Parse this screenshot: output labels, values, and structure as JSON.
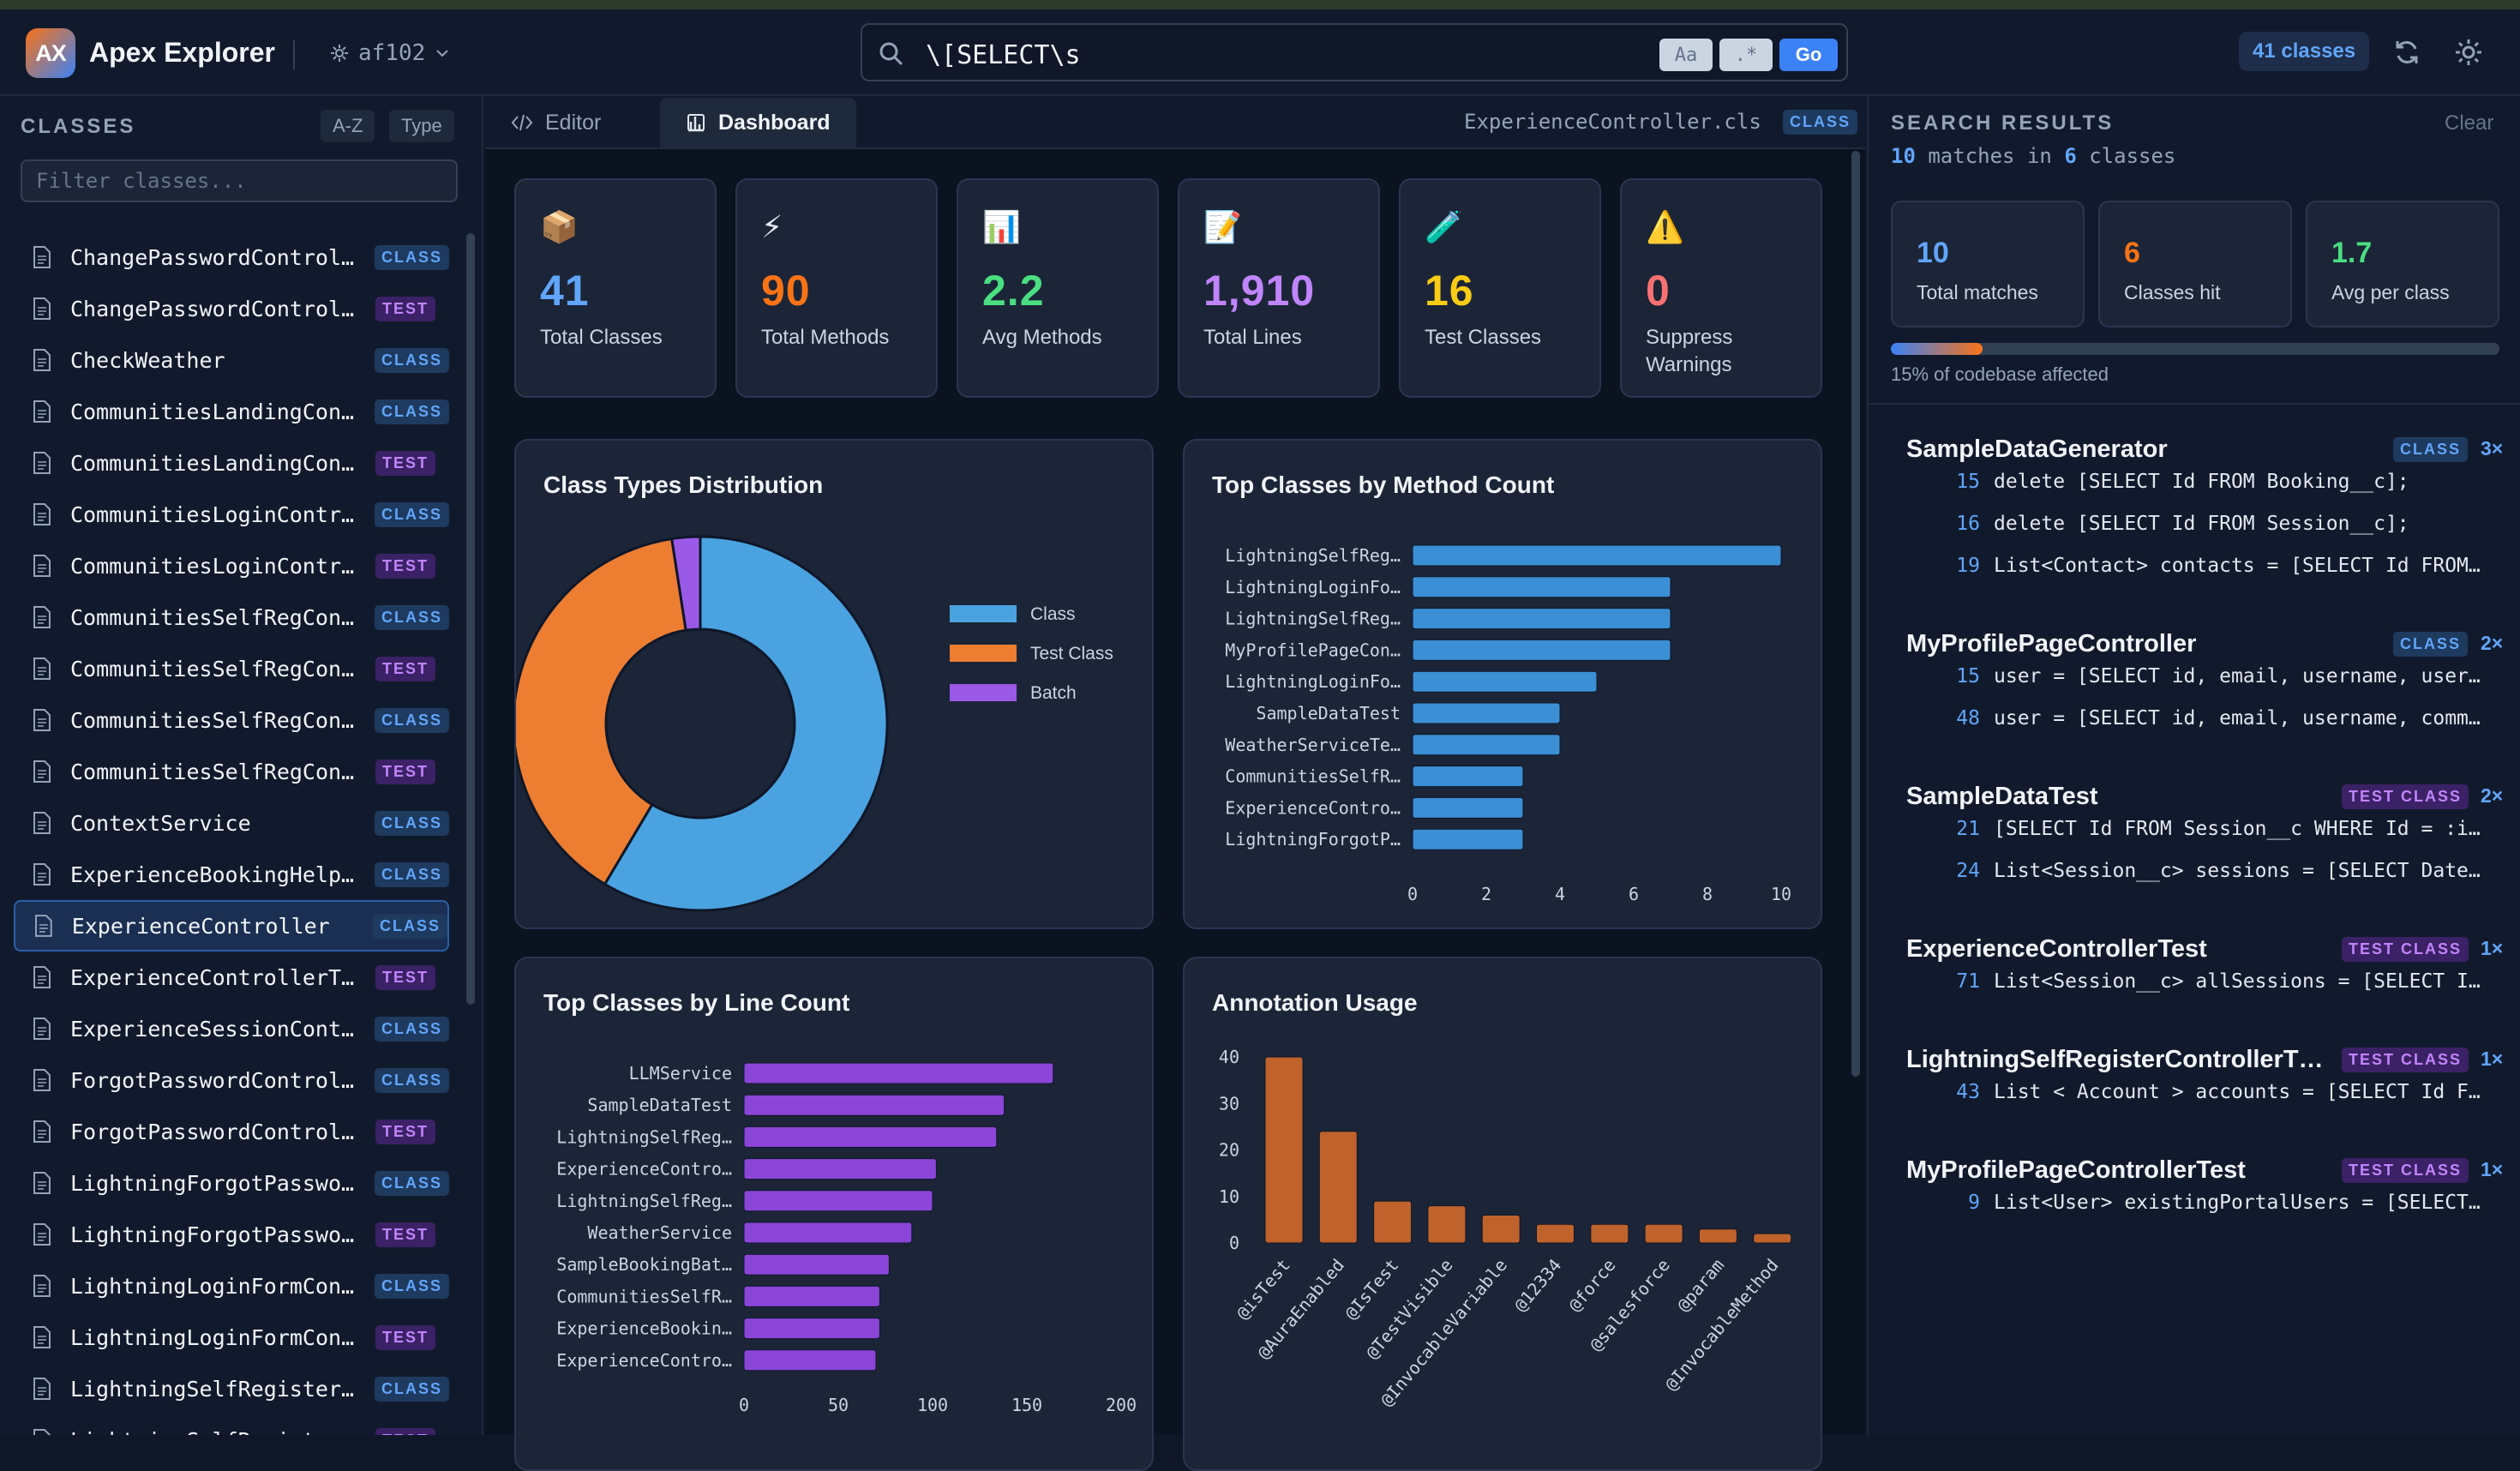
{
  "header": {
    "logo_text": "AX",
    "app_title": "Apex Explorer",
    "branch": "af102",
    "search_value": "\\[SELECT\\s",
    "case_btn": "Aa",
    "regex_btn": ".*",
    "go_btn": "Go",
    "class_count_badge": "41 classes"
  },
  "sidebar": {
    "title": "CLASSES",
    "sort_az": "A-Z",
    "sort_type": "Type",
    "filter_placeholder": "Filter classes...",
    "items": [
      {
        "name": "ChangePasswordControll…",
        "tag": "CLASS"
      },
      {
        "name": "ChangePasswordControlle…",
        "tag": "TEST"
      },
      {
        "name": "CheckWeather",
        "tag": "CLASS"
      },
      {
        "name": "CommunitiesLandingCont…",
        "tag": "CLASS"
      },
      {
        "name": "CommunitiesLandingContr…",
        "tag": "TEST"
      },
      {
        "name": "CommunitiesLoginContro…",
        "tag": "CLASS"
      },
      {
        "name": "CommunitiesLoginControl…",
        "tag": "TEST"
      },
      {
        "name": "CommunitiesSelfRegConf…",
        "tag": "CLASS"
      },
      {
        "name": "CommunitiesSelfRegConfi…",
        "tag": "TEST"
      },
      {
        "name": "CommunitiesSelfRegCont…",
        "tag": "CLASS"
      },
      {
        "name": "CommunitiesSelfRegContr…",
        "tag": "TEST"
      },
      {
        "name": "ContextService",
        "tag": "CLASS"
      },
      {
        "name": "ExperienceBookingHelper",
        "tag": "CLASS"
      },
      {
        "name": "ExperienceController",
        "tag": "CLASS",
        "active": true
      },
      {
        "name": "ExperienceControllerTest",
        "tag": "TEST"
      },
      {
        "name": "ExperienceSessionContr…",
        "tag": "CLASS"
      },
      {
        "name": "ForgotPasswordControll…",
        "tag": "CLASS"
      },
      {
        "name": "ForgotPasswordControlle…",
        "tag": "TEST"
      },
      {
        "name": "LightningForgotPasswor…",
        "tag": "CLASS"
      },
      {
        "name": "LightningForgotPassword…",
        "tag": "TEST"
      },
      {
        "name": "LightningLoginFormCont…",
        "tag": "CLASS"
      },
      {
        "name": "LightningLoginFormContr…",
        "tag": "TEST"
      },
      {
        "name": "LightningSelfRegisterC…",
        "tag": "CLASS"
      },
      {
        "name": "LightningSelfRegisterC…",
        "tag": "TEST"
      }
    ]
  },
  "main": {
    "tab_editor": "Editor",
    "tab_dashboard": "Dashboard",
    "file_label": "ExperienceController.cls",
    "file_tag": "CLASS",
    "stats": [
      {
        "icon": "📦",
        "value": "41",
        "label": "Total Classes",
        "color": "#60a5fa"
      },
      {
        "icon": "⚡",
        "value": "90",
        "label": "Total Methods",
        "color": "#f97316"
      },
      {
        "icon": "📊",
        "value": "2.2",
        "label": "Avg Methods",
        "color": "#4ade80"
      },
      {
        "icon": "📝",
        "value": "1,910",
        "label": "Total Lines",
        "color": "#c084fc"
      },
      {
        "icon": "🧪",
        "value": "16",
        "label": "Test Classes",
        "color": "#facc15"
      },
      {
        "icon": "⚠️",
        "value": "0",
        "label": "Suppress Warnings",
        "color": "#f87171"
      }
    ]
  },
  "chart_data": [
    {
      "type": "pie",
      "title": "Class Types Distribution",
      "categories": [
        "Class",
        "Test Class",
        "Batch"
      ],
      "values": [
        24,
        16,
        1
      ],
      "colors": [
        "#4aa3e0",
        "#ed7d31",
        "#9b59e8"
      ],
      "legend": "right"
    },
    {
      "type": "bar",
      "orientation": "horizontal",
      "title": "Top Classes by Method Count",
      "categories": [
        "LightningSelfReg…",
        "LightningLoginFo…",
        "LightningSelfReg…",
        "MyProfilePageCon…",
        "LightningLoginFo…",
        "SampleDataTest",
        "WeatherServiceTe…",
        "CommunitiesSelfR…",
        "ExperienceContro…",
        "LightningForgotP…"
      ],
      "values": [
        10,
        7,
        7,
        7,
        5,
        4,
        4,
        3,
        3,
        3
      ],
      "xticks": [
        0,
        2,
        4,
        6,
        8,
        10
      ],
      "xlim": [
        0,
        10
      ],
      "color": "#3b8fd4"
    },
    {
      "type": "bar",
      "orientation": "horizontal",
      "title": "Top Classes by Line Count",
      "categories": [
        "LLMService",
        "SampleDataTest",
        "LightningSelfReg…",
        "ExperienceContro…",
        "LightningSelfReg…",
        "WeatherService",
        "SampleBookingBat…",
        "CommunitiesSelfR…",
        "ExperienceBookin…",
        "ExperienceContro…"
      ],
      "values": [
        164,
        138,
        134,
        102,
        100,
        89,
        77,
        72,
        72,
        70
      ],
      "xticks": [
        0,
        50,
        100,
        150,
        200
      ],
      "xlim": [
        0,
        200
      ],
      "color": "#8b45d9"
    },
    {
      "type": "bar",
      "title": "Annotation Usage",
      "categories": [
        "@isTest",
        "@AuraEnabled",
        "@IsTest",
        "@TestVisible",
        "@InvocableVariable",
        "@12334",
        "@force",
        "@salesforce",
        "@param",
        "@InvocableMethod"
      ],
      "values": [
        40,
        24,
        9,
        8,
        6,
        4,
        4,
        4,
        3,
        2
      ],
      "yticks": [
        0,
        10,
        20,
        30,
        40
      ],
      "ylim": [
        0,
        42
      ],
      "color": "#c0622b"
    }
  ],
  "results": {
    "title": "SEARCH RESULTS",
    "clear": "Clear",
    "matches": "10",
    "matches_in": "matches in",
    "classes_n": "6",
    "classes_word": "classes",
    "mini": [
      {
        "value": "10",
        "label": "Total matches",
        "color": "#60a5fa"
      },
      {
        "value": "6",
        "label": "Classes hit",
        "color": "#f97316"
      },
      {
        "value": "1.7",
        "label": "Avg per class",
        "color": "#4ade80"
      }
    ],
    "affected_fraction": 0.15,
    "affected_label": "15% of codebase affected",
    "groups": [
      {
        "name": "SampleDataGenerator",
        "tag": "CLASS",
        "count": "3×",
        "lines": [
          {
            "n": "15",
            "code": "delete [SELECT Id FROM Booking__c];"
          },
          {
            "n": "16",
            "code": "delete [SELECT Id FROM Session__c];"
          },
          {
            "n": "19",
            "code": "List<Contact> contacts = [SELECT Id FROM …"
          }
        ]
      },
      {
        "name": "MyProfilePageController",
        "tag": "CLASS",
        "count": "2×",
        "lines": [
          {
            "n": "15",
            "code": "user = [SELECT id, email, username, usert…"
          },
          {
            "n": "48",
            "code": "user = [SELECT id, email, username, commu…"
          }
        ]
      },
      {
        "name": "SampleDataTest",
        "tag": "TEST CLASS",
        "count": "2×",
        "lines": [
          {
            "n": "21",
            "code": "[SELECT Id FROM Session__c WHERE Id = :in…"
          },
          {
            "n": "24",
            "code": "List<Session__c> sessions = [SELECT Date …"
          }
        ]
      },
      {
        "name": "ExperienceControllerTest",
        "tag": "TEST CLASS",
        "count": "1×",
        "lines": [
          {
            "n": "71",
            "code": "List<Session__c> allSessions = [SELECT Id…"
          }
        ]
      },
      {
        "name": "LightningSelfRegisterControllerT…",
        "tag": "TEST CLASS",
        "count": "1×",
        "lines": [
          {
            "n": "43",
            "code": "List < Account > accounts = [SELECT Id FR…"
          }
        ]
      },
      {
        "name": "MyProfilePageControllerTest",
        "tag": "TEST CLASS",
        "count": "1×",
        "lines": [
          {
            "n": "9",
            "code": "List<User> existingPortalUsers = [SELECT …"
          }
        ]
      }
    ]
  }
}
